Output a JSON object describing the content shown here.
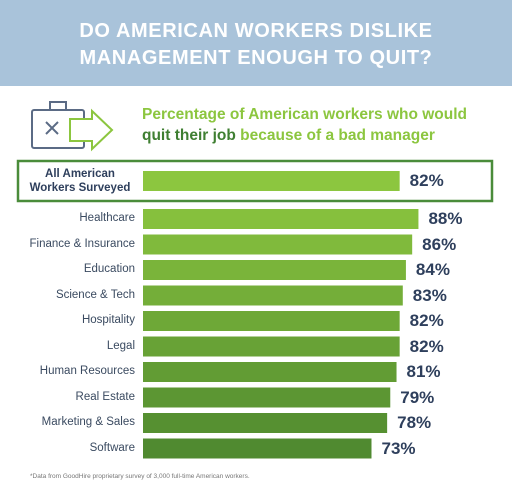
{
  "chart_data": {
    "type": "bar",
    "title": "DO AMERICAN WORKERS DISLIKE MANAGEMENT ENOUGH TO QUIT?",
    "subtitle_parts": [
      "Percentage of American workers who would",
      "quit their job",
      "because of a bad manager"
    ],
    "categories": [
      "All American Workers Surveyed",
      "Healthcare",
      "Finance & Insurance",
      "Education",
      "Science & Tech",
      "Hospitality",
      "Legal",
      "Human Resources",
      "Real Estate",
      "Marketing & Sales",
      "Software"
    ],
    "values": [
      82,
      88,
      86,
      84,
      83,
      82,
      82,
      81,
      79,
      78,
      73
    ],
    "value_labels": [
      "82%",
      "88%",
      "86%",
      "84%",
      "83%",
      "82%",
      "82%",
      "81%",
      "79%",
      "78%",
      "73%"
    ],
    "colors": [
      "#8cc63f",
      "#86c03d",
      "#80ba3c",
      "#7ab43a",
      "#74ae39",
      "#6ea837",
      "#68a236",
      "#629c34",
      "#5c9633",
      "#569031",
      "#508a30"
    ],
    "highlighted_category": 0,
    "xlim": [
      0,
      100
    ],
    "footnote": "*Data from GoodHire proprietary survey of 3,000 full-time American workers."
  }
}
